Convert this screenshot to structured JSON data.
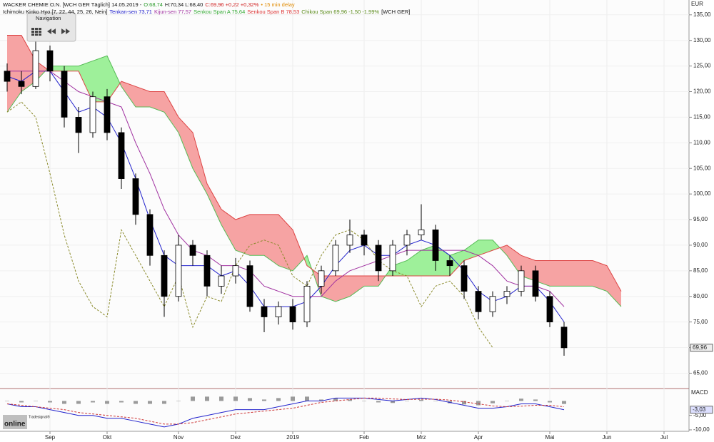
{
  "header": {
    "instrument": "WACKER CHEMIE O.N. [WCH GER Täglich] 14.05.2019 -",
    "open": "O:68,74",
    "high_low": "H:70,34 L:68,40",
    "close": "C:69,96 +0,22 +0,32%",
    "delay": "• 15 min delay",
    "indicator": "Ichimoku Kinko Hyo [7, 22, 44, 25, 26, Nein]",
    "tenkan": "Tenkan-sen 73,71",
    "kijun": "Kijun-sen 77,57",
    "span_a": "Senkou Span A 75,64",
    "span_b": "Senkou Span B 78,53",
    "chikou": "Chikou Span 69,96 -1,50 -1,99%",
    "symbol": "[WCH GER]"
  },
  "navigation": "Navigation",
  "logo": {
    "small": "Tradesignal®",
    "main": "online"
  },
  "chart_data": [
    {
      "type": "candlestick",
      "unit": "EUR",
      "categories": [
        null,
        null,
        null,
        "Sep",
        null,
        null,
        null,
        "Okt",
        null,
        null,
        null,
        null,
        "Nov",
        null,
        null,
        null,
        "Dez",
        null,
        null,
        null,
        "2019",
        null,
        null,
        null,
        null,
        "Feb",
        null,
        null,
        null,
        "Mrz",
        null,
        null,
        null,
        "Apr",
        null,
        null,
        null,
        null,
        "Mai",
        null,
        null,
        null,
        "Jun",
        null,
        null,
        null,
        "Jul",
        null
      ],
      "open": [
        124,
        122,
        121,
        128,
        124,
        115,
        112,
        119,
        112,
        103,
        96,
        88,
        80,
        90,
        88,
        82,
        84,
        86,
        78,
        76,
        78,
        75,
        82,
        85,
        90,
        92,
        90,
        85,
        90,
        92,
        93,
        87,
        86,
        81,
        77,
        80,
        81,
        85,
        80,
        74,
        null,
        null,
        null,
        null,
        null,
        null,
        null,
        null
      ],
      "high": [
        125.5,
        124,
        130,
        129,
        125,
        117,
        120,
        120.5,
        113,
        104,
        97,
        89,
        92,
        91,
        89,
        86,
        87.5,
        87,
        79.5,
        79,
        79.5,
        83,
        86,
        91,
        95,
        93,
        91,
        91,
        93,
        98,
        94,
        88,
        87,
        82,
        81,
        82,
        86,
        86,
        81,
        75,
        null,
        null,
        null,
        null,
        null,
        null,
        null,
        null
      ],
      "low": [
        120,
        119.5,
        120.5,
        122,
        113,
        108,
        111,
        110.5,
        101,
        94,
        86,
        76,
        79,
        86,
        80,
        80.5,
        82.5,
        77,
        73,
        74.5,
        73.5,
        74,
        80.5,
        84,
        88.5,
        88,
        83,
        84,
        88,
        91,
        85,
        84,
        79.5,
        75.5,
        76,
        78.5,
        80,
        79,
        74,
        68.4,
        null,
        null,
        null,
        null,
        null,
        null,
        null,
        null
      ],
      "close": [
        122,
        121,
        128,
        124,
        115,
        112,
        119,
        112,
        103,
        96,
        88,
        80,
        90,
        88,
        82,
        84,
        86,
        78,
        76,
        78,
        75,
        82,
        85,
        90,
        92,
        90,
        85,
        90,
        92,
        93,
        87,
        86,
        81,
        77,
        80,
        81,
        85,
        80,
        75,
        69.96,
        null,
        null,
        null,
        null,
        null,
        null,
        null,
        null
      ],
      "up_color": "#ffffff",
      "down_color": "#000000",
      "lines": [
        {
          "color": "#2222cc",
          "dashed": false,
          "values": [
            123,
            122,
            124,
            124,
            120,
            116,
            117,
            115,
            110,
            103,
            95,
            88,
            86,
            86,
            86,
            84,
            85,
            82,
            78,
            78,
            78,
            79,
            82,
            86,
            89,
            90,
            88,
            88,
            90,
            91,
            90,
            88,
            85,
            81,
            79,
            80,
            82,
            82,
            79,
            75,
            null,
            null,
            null,
            null,
            null,
            null,
            null,
            null
          ]
        },
        {
          "color": "#a030a0",
          "dashed": false,
          "values": [
            124,
            124,
            124,
            124,
            122,
            120,
            119,
            118,
            117,
            110,
            104,
            97,
            92,
            89,
            88,
            86,
            86,
            85,
            82,
            81,
            80,
            80,
            80,
            83,
            85,
            86,
            87,
            88,
            89,
            89,
            89,
            89,
            89,
            88,
            86,
            83,
            82,
            82,
            81,
            78,
            null,
            null,
            null,
            null,
            null,
            null,
            null,
            null
          ]
        },
        {
          "color": "#8a8a2a",
          "dashed": true,
          "values": [
            116,
            118,
            115,
            104,
            92,
            83,
            78,
            76,
            93,
            88,
            83,
            78,
            84,
            74,
            80,
            79,
            86,
            90,
            91,
            90,
            84,
            82,
            88,
            92,
            93,
            91,
            87,
            85,
            84,
            78,
            82,
            83,
            80,
            74,
            70,
            null,
            null,
            null,
            null,
            null,
            null,
            null,
            null,
            null,
            null,
            null,
            null,
            null
          ]
        }
      ],
      "cloud": {
        "span_a": {
          "color": "#55bb55",
          "values": [
            116,
            120,
            122,
            125,
            125,
            125,
            126,
            127,
            121,
            117,
            117,
            116,
            112,
            105,
            100,
            94,
            89,
            88,
            88,
            86,
            85,
            88,
            80,
            79,
            80,
            82,
            82,
            86,
            87,
            89,
            90,
            88,
            89,
            91,
            91,
            88,
            84,
            83,
            82,
            82,
            82,
            82,
            81,
            78,
            null,
            null,
            null,
            null
          ]
        },
        "span_b": {
          "color": "#dd4444",
          "values": [
            131,
            131,
            126,
            124,
            124,
            124,
            118,
            118,
            122,
            121,
            120,
            120,
            115,
            112,
            102,
            97,
            95,
            96,
            96,
            96,
            93,
            86,
            84,
            84,
            84,
            84,
            84,
            84,
            84,
            84,
            84,
            84,
            87,
            88,
            89,
            90,
            88,
            87,
            87,
            87,
            87,
            87,
            86,
            81,
            null,
            null,
            null,
            null
          ]
        },
        "up_fill": "#9ef09a",
        "down_fill": "#f6a3a3"
      },
      "ylim": [
        62,
        137.2
      ],
      "yticks": [
        {
          "value": 65,
          "label": "65,00"
        },
        {
          "value": 70,
          "label": "70,00"
        },
        {
          "value": 75,
          "label": "75,00"
        },
        {
          "value": 80,
          "label": "80,00"
        },
        {
          "value": 85,
          "label": "85,00"
        },
        {
          "value": 90,
          "label": "90,00"
        },
        {
          "value": 95,
          "label": "95,00"
        },
        {
          "value": 100,
          "label": "100,00"
        },
        {
          "value": 105,
          "label": "105,00"
        },
        {
          "value": 110,
          "label": "110,00"
        },
        {
          "value": 115,
          "label": "115,00"
        },
        {
          "value": 120,
          "label": "120,00"
        },
        {
          "value": 125,
          "label": "125,00"
        },
        {
          "value": 130,
          "label": "130,00"
        },
        {
          "value": 135,
          "label": "135,00"
        }
      ],
      "last_price": {
        "value": 69.96,
        "label": "69,96"
      },
      "grid": true
    },
    {
      "type": "line",
      "title": "MACD",
      "series": [
        {
          "color": "#2222cc",
          "dashed": false,
          "values": [
            -1,
            -2,
            -2,
            -3,
            -4,
            -5,
            -5,
            -6,
            -6,
            -7,
            -8,
            -9,
            -8,
            -6,
            -5,
            -4,
            -3,
            -3,
            -3,
            -2,
            -1,
            0,
            0,
            1,
            1,
            1,
            0.5,
            0,
            0.5,
            1,
            0.5,
            -0.5,
            -1.5,
            -2.5,
            -2.5,
            -2,
            -1,
            -1,
            -2,
            -3.03,
            null,
            null,
            null,
            null,
            null,
            null,
            null,
            null
          ]
        },
        {
          "color": "#cc3333",
          "dashed": true,
          "values": [
            -1,
            -1.5,
            -2,
            -2.5,
            -3,
            -4,
            -4.5,
            -5,
            -5.5,
            -6,
            -7,
            -8,
            -8,
            -7.5,
            -6.5,
            -5.5,
            -4.5,
            -4,
            -3.5,
            -3,
            -2.5,
            -1.5,
            -0.5,
            0,
            0.5,
            1,
            1,
            0.7,
            0.5,
            0.6,
            0.6,
            0.3,
            -0.3,
            -1,
            -1.7,
            -2,
            -1.8,
            -1.5,
            -1.5,
            -2,
            null,
            null,
            null,
            null,
            null,
            null,
            null,
            null
          ]
        }
      ],
      "histogram": {
        "color": "#9a9a9a",
        "values": [
          0,
          -0.5,
          0,
          -0.5,
          -1,
          -1,
          -0.5,
          -1,
          -0.5,
          -1,
          -1,
          -1,
          0,
          1.5,
          1.5,
          1.5,
          1.5,
          1,
          0.5,
          1,
          1.5,
          1.5,
          0.5,
          1,
          0.5,
          0,
          -0.5,
          -0.7,
          0,
          0.4,
          -0.1,
          -0.8,
          -1.2,
          -1.5,
          -0.8,
          0,
          0.8,
          0.5,
          -0.5,
          -1.03,
          null,
          null,
          null,
          null,
          null,
          null,
          null,
          null
        ]
      },
      "ylim": [
        -10.5,
        4.3
      ],
      "yticks": [
        {
          "value": -5,
          "label": "-5,00"
        },
        {
          "value": -10,
          "label": "-10,00"
        }
      ],
      "last": {
        "value": -3.03,
        "label": "-3,03"
      }
    }
  ]
}
